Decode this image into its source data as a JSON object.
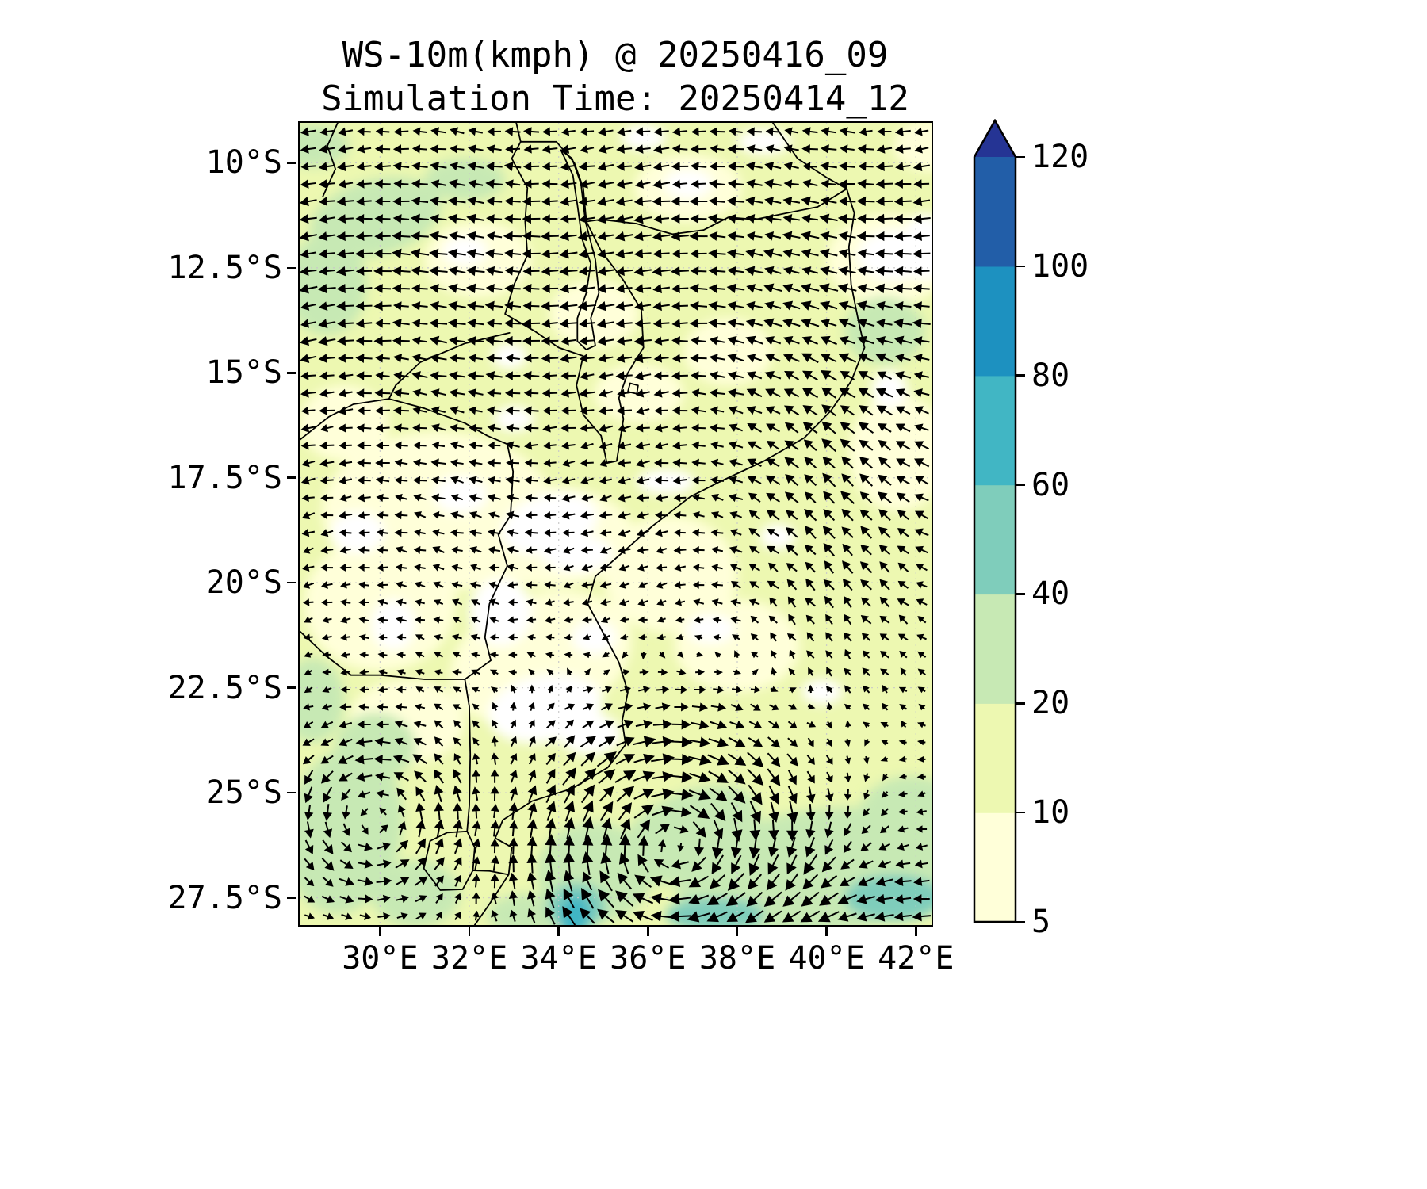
{
  "title": {
    "line1": "WS-10m(kmph) @ 20250416_09",
    "line2": "Simulation Time: 20250414_12"
  },
  "chart_data": {
    "type": "heatmap",
    "title": "WS-10m(kmph) @ 20250416_09",
    "subtitle": "Simulation Time: 20250414_12",
    "variable": "WS-10m (10-metre wind speed)",
    "units": "kmph",
    "valid_time": "20250416_09",
    "simulation_time": "20250414_12",
    "overlay": "black wind-direction quiver arrows on every grid point",
    "base_field_color": "#edf8b1",
    "x_axis": {
      "tick_labels": [
        "30°E",
        "32°E",
        "34°E",
        "36°E",
        "38°E",
        "40°E",
        "42°E"
      ],
      "tick_values_deg_east": [
        30,
        32,
        34,
        36,
        38,
        40,
        42
      ],
      "range_deg_east": [
        28.2,
        42.35
      ]
    },
    "y_axis": {
      "tick_labels": [
        "10°S",
        "12.5°S",
        "15°S",
        "17.5°S",
        "20°S",
        "22.5°S",
        "25°S",
        "27.5°S"
      ],
      "tick_values_deg_south": [
        10,
        12.5,
        15,
        17.5,
        20,
        22.5,
        25,
        27.5
      ],
      "range_deg_south": [
        9.05,
        28.15
      ]
    },
    "colorbar": {
      "orientation": "vertical",
      "extend": "max",
      "tick_labels": [
        "5",
        "10",
        "20",
        "40",
        "60",
        "80",
        "100",
        "120"
      ],
      "levels": [
        5,
        10,
        20,
        40,
        60,
        80,
        100,
        120
      ],
      "interval_colors": [
        "#ffffd9",
        "#edf8b1",
        "#c7e9b4",
        "#7fcdbb",
        "#41b6c4",
        "#1d91c0",
        "#225ea8"
      ],
      "over_color": "#253494"
    },
    "notable_features": [
      {
        "region": "most of the domain (Mozambique and surroundings)",
        "wind_speed_kmph": "5-20"
      },
      {
        "region": "southern Mozambique Channel / offshore south of 25°S",
        "wind_speed_kmph": "20-40"
      },
      {
        "region": "small coastal core near 34.3°E, 27.9°S",
        "wind_speed_kmph": "60-80"
      },
      {
        "region": "offshore patch near 41.3°E, 14°S",
        "wind_speed_kmph": "20-40"
      },
      {
        "region": "north-western highlands near 29-30°E, 11-13°S",
        "wind_speed_kmph": "20-40"
      },
      {
        "region": "scattered calm pockets over central Mozambique / Zimbabwe",
        "wind_speed_kmph": "<5"
      },
      {
        "region": "clockwise (cyclonic) circulation centred near 36.5°E, 26.5°S",
        "wind_speed_kmph": "20-60"
      },
      {
        "region": "broad easterly flow north of 16°S",
        "wind_speed_kmph": "10-20"
      }
    ]
  },
  "map_render": {
    "palette": {
      "w": "#ffffff",
      "c0": "#ffffd9",
      "c2": "#c7e9b4",
      "c3": "#7fcdbb",
      "c4": "#41b6c4"
    },
    "patches": [
      [
        31.3,
        18.3,
        2.6,
        1.9,
        0,
        "c0"
      ],
      [
        33.6,
        21.8,
        2.1,
        1.5,
        -20,
        "c0"
      ],
      [
        33.8,
        18.9,
        1.9,
        1.2,
        0,
        "c0"
      ],
      [
        30.0,
        20.5,
        1.7,
        1.6,
        0,
        "c0"
      ],
      [
        36.5,
        19.8,
        1.5,
        1.4,
        0,
        "c0"
      ],
      [
        32.2,
        12.3,
        1.2,
        0.9,
        0,
        "c0"
      ],
      [
        36.9,
        10.6,
        1.2,
        0.8,
        0,
        "c0"
      ],
      [
        41.4,
        12.3,
        1.4,
        1.1,
        0,
        "c0"
      ],
      [
        34.8,
        13.6,
        1.0,
        0.8,
        0,
        "c0"
      ],
      [
        38.0,
        21.5,
        1.4,
        1.1,
        0,
        "c0"
      ],
      [
        41.6,
        16.9,
        1.1,
        1.4,
        0,
        "c0"
      ],
      [
        30.6,
        23.3,
        1.3,
        1.0,
        0,
        "c0"
      ],
      [
        35.8,
        15.5,
        1.0,
        0.7,
        0,
        "c0"
      ],
      [
        42.3,
        9.6,
        0.8,
        0.6,
        0,
        "c0"
      ],
      [
        37.8,
        14.5,
        1.0,
        0.8,
        0,
        "c0"
      ],
      [
        29.2,
        16.2,
        1.0,
        0.9,
        0,
        "c0"
      ],
      [
        29.9,
        11.3,
        1.5,
        0.9,
        -15,
        "c2"
      ],
      [
        28.8,
        12.9,
        0.9,
        1.2,
        0,
        "c2"
      ],
      [
        31.9,
        10.4,
        0.9,
        0.5,
        0,
        "c2"
      ],
      [
        41.3,
        14.0,
        0.9,
        0.8,
        0,
        "c2"
      ],
      [
        39.8,
        26.9,
        3.2,
        1.5,
        -8,
        "c2"
      ],
      [
        36.9,
        26.0,
        1.7,
        1.0,
        -25,
        "c2"
      ],
      [
        41.9,
        25.6,
        1.2,
        1.0,
        0,
        "c2"
      ],
      [
        34.8,
        26.9,
        1.3,
        1.2,
        0,
        "c2"
      ],
      [
        29.2,
        25.9,
        1.3,
        2.0,
        10,
        "c2"
      ],
      [
        29.9,
        23.9,
        0.9,
        0.8,
        0,
        "c2"
      ],
      [
        28.5,
        22.8,
        0.7,
        1.0,
        0,
        "c2"
      ],
      [
        33.3,
        27.9,
        0.9,
        0.5,
        0,
        "c2"
      ],
      [
        30.8,
        27.4,
        1.0,
        0.8,
        0,
        "c2"
      ],
      [
        28.5,
        9.6,
        0.8,
        0.5,
        0,
        "c2"
      ],
      [
        34.4,
        27.7,
        0.65,
        0.55,
        0,
        "c3"
      ],
      [
        41.5,
        27.5,
        1.1,
        0.55,
        0,
        "c3"
      ],
      [
        37.5,
        27.9,
        1.1,
        0.4,
        0,
        "c3"
      ],
      [
        34.35,
        27.95,
        0.34,
        0.5,
        10,
        "c4"
      ],
      [
        33.8,
        18.6,
        1.1,
        0.7,
        -15,
        "w"
      ],
      [
        34.4,
        19.3,
        0.8,
        0.45,
        0,
        "w"
      ],
      [
        33.7,
        23.0,
        1.3,
        0.8,
        -10,
        "w"
      ],
      [
        34.7,
        23.6,
        0.7,
        0.5,
        0,
        "w"
      ],
      [
        32.7,
        20.7,
        0.7,
        0.8,
        0,
        "w"
      ],
      [
        31.8,
        17.9,
        0.6,
        0.45,
        0,
        "w"
      ],
      [
        36.4,
        17.6,
        0.65,
        0.3,
        0,
        "w"
      ],
      [
        41.5,
        12.2,
        0.8,
        0.6,
        0,
        "w"
      ],
      [
        36.9,
        10.5,
        0.55,
        0.35,
        0,
        "w"
      ],
      [
        31.9,
        12.1,
        0.5,
        0.35,
        0,
        "w"
      ],
      [
        29.5,
        18.8,
        0.6,
        0.5,
        0,
        "w"
      ],
      [
        37.4,
        21.1,
        0.55,
        0.35,
        0,
        "w"
      ],
      [
        39.9,
        22.6,
        0.45,
        0.3,
        0,
        "w"
      ],
      [
        41.4,
        15.4,
        0.4,
        0.45,
        0,
        "w"
      ],
      [
        33.0,
        16.1,
        0.45,
        0.3,
        0,
        "w"
      ],
      [
        30.3,
        21.0,
        0.5,
        0.6,
        0,
        "w"
      ],
      [
        35.9,
        9.4,
        0.5,
        0.3,
        0,
        "w"
      ],
      [
        38.6,
        9.5,
        0.6,
        0.3,
        0,
        "w"
      ],
      [
        34.8,
        21.3,
        0.5,
        0.4,
        0,
        "w"
      ],
      [
        42.2,
        12.0,
        0.5,
        0.8,
        0,
        "w"
      ],
      [
        32.9,
        14.6,
        0.4,
        0.3,
        0,
        "w"
      ],
      [
        38.9,
        18.9,
        0.4,
        0.3,
        0,
        "w"
      ]
    ],
    "borders": {
      "coast": [
        [
          38.8,
          9.05
        ],
        [
          39.35,
          9.9
        ],
        [
          40.0,
          10.35
        ],
        [
          40.45,
          10.62
        ],
        [
          40.62,
          11.2
        ],
        [
          40.5,
          12.0
        ],
        [
          40.55,
          12.9
        ],
        [
          40.72,
          13.8
        ],
        [
          40.85,
          14.4
        ],
        [
          40.55,
          15.2
        ],
        [
          40.1,
          15.9
        ],
        [
          39.5,
          16.55
        ],
        [
          38.6,
          17.1
        ],
        [
          37.6,
          17.6
        ],
        [
          36.95,
          17.95
        ],
        [
          36.1,
          18.65
        ],
        [
          35.3,
          19.4
        ],
        [
          34.82,
          19.85
        ],
        [
          34.65,
          20.5
        ],
        [
          35.0,
          21.2
        ],
        [
          35.35,
          21.9
        ],
        [
          35.55,
          22.6
        ],
        [
          35.42,
          23.3
        ],
        [
          35.5,
          23.85
        ],
        [
          35.1,
          24.4
        ],
        [
          34.3,
          24.9
        ],
        [
          33.4,
          25.2
        ],
        [
          32.75,
          25.65
        ],
        [
          32.58,
          26.08
        ],
        [
          32.95,
          26.3
        ],
        [
          32.88,
          26.95
        ],
        [
          32.45,
          27.65
        ],
        [
          32.12,
          28.15
        ]
      ],
      "rovuma": [
        [
          40.45,
          10.62
        ],
        [
          39.8,
          11.05
        ],
        [
          39.1,
          11.2
        ],
        [
          38.4,
          11.35
        ],
        [
          37.8,
          11.3
        ],
        [
          37.25,
          11.6
        ],
        [
          36.55,
          11.7
        ],
        [
          36.15,
          11.58
        ],
        [
          35.75,
          11.45
        ],
        [
          35.35,
          11.4
        ],
        [
          34.95,
          11.35
        ],
        [
          34.62,
          11.4
        ]
      ],
      "malawi": [
        [
          33.15,
          9.5
        ],
        [
          33.95,
          9.5
        ],
        [
          34.35,
          10.0
        ],
        [
          34.55,
          10.6
        ],
        [
          34.62,
          11.4
        ],
        [
          34.95,
          12.1
        ],
        [
          35.45,
          12.8
        ],
        [
          35.85,
          13.5
        ],
        [
          35.9,
          14.4
        ],
        [
          35.55,
          15.0
        ],
        [
          35.35,
          15.6
        ],
        [
          35.45,
          16.1
        ],
        [
          35.3,
          17.1
        ],
        [
          35.08,
          17.15
        ],
        [
          34.95,
          16.5
        ],
        [
          34.55,
          16.0
        ],
        [
          34.4,
          15.3
        ],
        [
          34.55,
          14.6
        ],
        [
          34.0,
          14.4
        ],
        [
          33.45,
          14.0
        ],
        [
          32.8,
          13.6
        ],
        [
          33.0,
          12.9
        ],
        [
          33.3,
          12.2
        ],
        [
          33.25,
          11.4
        ],
        [
          33.3,
          10.6
        ],
        [
          32.95,
          9.9
        ],
        [
          33.15,
          9.5
        ]
      ],
      "lake_malawi": [
        [
          34.05,
          9.7
        ],
        [
          34.32,
          10.3
        ],
        [
          34.42,
          11.0
        ],
        [
          34.52,
          11.8
        ],
        [
          34.72,
          12.4
        ],
        [
          34.62,
          13.1
        ],
        [
          34.42,
          13.7
        ],
        [
          34.42,
          14.25
        ],
        [
          34.62,
          14.45
        ],
        [
          34.82,
          14.35
        ],
        [
          34.72,
          13.7
        ],
        [
          34.9,
          13.1
        ],
        [
          34.82,
          12.3
        ],
        [
          34.6,
          11.4
        ],
        [
          34.5,
          10.5
        ],
        [
          34.3,
          9.9
        ],
        [
          34.05,
          9.7
        ]
      ],
      "lake_chilwa": [
        [
          35.6,
          15.25
        ],
        [
          35.78,
          15.3
        ],
        [
          35.75,
          15.5
        ],
        [
          35.55,
          15.45
        ],
        [
          35.6,
          15.25
        ]
      ],
      "tz_zambia": [
        [
          33.05,
          9.05
        ],
        [
          33.15,
          9.5
        ]
      ],
      "drc_zambia": [
        [
          29.05,
          9.05
        ],
        [
          28.82,
          9.6
        ],
        [
          29.0,
          10.15
        ],
        [
          28.72,
          10.8
        ]
      ],
      "zambia_moz_zambezi": [
        [
          32.9,
          14.05
        ],
        [
          31.9,
          14.3
        ],
        [
          30.9,
          14.75
        ],
        [
          30.35,
          15.3
        ],
        [
          30.2,
          15.62
        ],
        [
          29.4,
          15.75
        ],
        [
          28.85,
          16.05
        ],
        [
          28.2,
          16.6
        ]
      ],
      "zim_moz": [
        [
          30.2,
          15.62
        ],
        [
          31.0,
          15.85
        ],
        [
          31.9,
          16.2
        ],
        [
          32.4,
          16.5
        ],
        [
          32.85,
          16.7
        ],
        [
          32.98,
          17.35
        ],
        [
          32.92,
          18.4
        ],
        [
          32.65,
          18.85
        ],
        [
          32.85,
          19.6
        ],
        [
          32.45,
          20.5
        ],
        [
          32.35,
          21.3
        ],
        [
          32.48,
          21.85
        ],
        [
          31.9,
          22.3
        ]
      ],
      "limpopo_border": [
        [
          31.9,
          22.3
        ],
        [
          31.0,
          22.3
        ],
        [
          30.0,
          22.2
        ],
        [
          29.35,
          22.2
        ]
      ],
      "botswana_zim": [
        [
          29.35,
          22.2
        ],
        [
          28.8,
          21.75
        ],
        [
          28.2,
          21.15
        ]
      ],
      "sa_moz": [
        [
          31.9,
          22.3
        ],
        [
          32.0,
          22.95
        ],
        [
          32.02,
          24.1
        ],
        [
          32.0,
          25.3
        ],
        [
          31.95,
          25.92
        ]
      ],
      "eswatini": [
        [
          31.95,
          25.92
        ],
        [
          32.12,
          26.3
        ],
        [
          32.08,
          26.85
        ],
        [
          31.85,
          27.3
        ],
        [
          31.35,
          27.32
        ],
        [
          30.98,
          26.8
        ],
        [
          31.12,
          26.15
        ],
        [
          31.5,
          25.95
        ],
        [
          31.95,
          25.92
        ]
      ],
      "sa_moz_south": [
        [
          32.08,
          26.85
        ],
        [
          32.45,
          26.86
        ],
        [
          32.88,
          26.95
        ]
      ]
    },
    "flow": {
      "grid": {
        "cols": 34,
        "rows": 46
      },
      "north_band": {
        "u": -1.15,
        "v_amp": 0.18,
        "center_s": 12.3,
        "width": 5.5
      },
      "mid_band": {
        "u": -0.32,
        "center_s": 19.2,
        "width": 3.2
      },
      "east_coast": {
        "v": 0.8,
        "lon0": 40.8,
        "lon_w": 2.4,
        "s0": 17.5,
        "s_w": 4.5
      },
      "cyclone": {
        "lon": 36.6,
        "s": 26.45,
        "amp": 2.3,
        "r2_scale": 6.0
      },
      "eddy": {
        "lon": 29.9,
        "s": 25.6,
        "amp": 1.4,
        "r2_scale": 3.2
      },
      "south_easterlies": {
        "u": -1.25,
        "center_s": 28.2,
        "width": 2.3,
        "lon_ramp": [
          34,
          38
        ]
      },
      "arrow": {
        "min_len": 7,
        "len_per_speed": 11,
        "max_len": 26,
        "jitter": 0.5
      }
    }
  }
}
